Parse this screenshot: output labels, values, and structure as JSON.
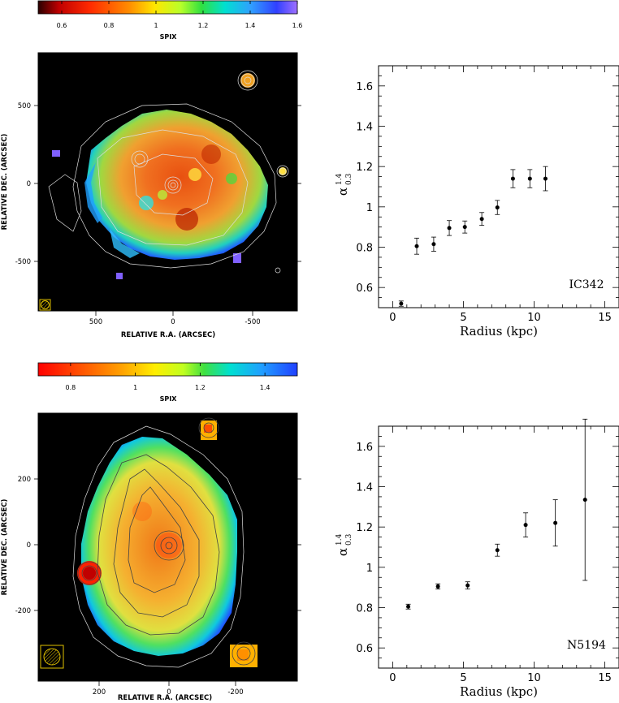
{
  "panels": [
    {
      "colorbar": {
        "label": "SPIX",
        "ticks": [
          "0.6",
          "0.8",
          "1",
          "1.2",
          "1.4",
          "1.6"
        ],
        "range": [
          0.5,
          1.6
        ]
      },
      "map": {
        "xlabel": "RELATIVE R.A.  (ARCSEC)",
        "ylabel": "RELATIVE DEC. (ARCSEC)",
        "xticks": [
          "500",
          "0",
          "-500"
        ],
        "yticks": [
          "500",
          "0",
          "-500"
        ]
      }
    },
    {
      "colorbar": {
        "label": "SPIX",
        "ticks": [
          "0.8",
          "1",
          "1.2",
          "1.4"
        ],
        "range": [
          0.7,
          1.5
        ]
      },
      "map": {
        "xlabel": "RELATIVE R.A.  (ARCSEC)",
        "ylabel": "RELATIVE DEC. (ARCSEC)",
        "xticks": [
          "200",
          "0",
          "-200"
        ],
        "yticks": [
          "200",
          "0",
          "-200"
        ]
      }
    }
  ],
  "chart_data": [
    {
      "type": "scatter",
      "title": "",
      "xlabel": "Radius (kpc)",
      "ylabel": "α",
      "ylabel_sup": "1.4",
      "ylabel_sub": "0.3",
      "annotation": "IC342",
      "xlim": [
        -1,
        16
      ],
      "ylim": [
        0.5,
        1.7
      ],
      "xticks": [
        0,
        5,
        10,
        15
      ],
      "yticks": [
        0.6,
        0.8,
        1,
        1.2,
        1.4,
        1.6
      ],
      "ytick_labels": [
        "0.6",
        "0.8",
        "1",
        "1.2",
        "1.4",
        "1.6"
      ],
      "points": [
        {
          "x": 0.6,
          "y": 0.52,
          "err": 0.013
        },
        {
          "x": 1.7,
          "y": 0.805,
          "err": 0.04
        },
        {
          "x": 2.9,
          "y": 0.815,
          "err": 0.035
        },
        {
          "x": 4.0,
          "y": 0.895,
          "err": 0.037
        },
        {
          "x": 5.1,
          "y": 0.9,
          "err": 0.03
        },
        {
          "x": 6.3,
          "y": 0.94,
          "err": 0.032
        },
        {
          "x": 7.4,
          "y": 0.997,
          "err": 0.035
        },
        {
          "x": 8.5,
          "y": 1.14,
          "err": 0.045
        },
        {
          "x": 9.7,
          "y": 1.14,
          "err": 0.045
        },
        {
          "x": 10.8,
          "y": 1.14,
          "err": 0.06
        }
      ]
    },
    {
      "type": "scatter",
      "title": "",
      "xlabel": "Radius (kpc)",
      "ylabel": "α",
      "ylabel_sup": "1.4",
      "ylabel_sub": "0.3",
      "annotation": "N5194",
      "xlim": [
        -1,
        16
      ],
      "ylim": [
        0.5,
        1.7
      ],
      "xticks": [
        0,
        5,
        10,
        15
      ],
      "yticks": [
        0.6,
        0.8,
        1,
        1.2,
        1.4,
        1.6
      ],
      "ytick_labels": [
        "0.6",
        "0.8",
        "1",
        "1.2",
        "1.4",
        "1.6"
      ],
      "points": [
        {
          "x": 1.1,
          "y": 0.805,
          "err": 0.012
        },
        {
          "x": 3.2,
          "y": 0.905,
          "err": 0.013
        },
        {
          "x": 5.3,
          "y": 0.91,
          "err": 0.018
        },
        {
          "x": 7.4,
          "y": 1.085,
          "err": 0.03
        },
        {
          "x": 9.4,
          "y": 1.21,
          "err": 0.06
        },
        {
          "x": 11.5,
          "y": 1.22,
          "err": 0.115
        },
        {
          "x": 13.6,
          "y": 1.335,
          "err": 0.4
        }
      ]
    }
  ]
}
